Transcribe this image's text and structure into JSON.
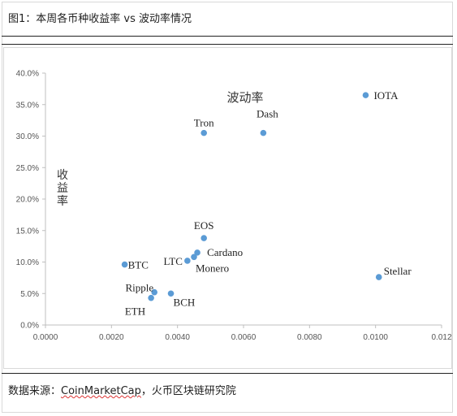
{
  "header": {
    "title": "图1：本周各币种收益率 vs 波动率情况"
  },
  "footer": {
    "source_prefix": "数据来源：",
    "source_link": "CoinMarketCap",
    "source_suffix": "，火币区块链研究院"
  },
  "chart_data": {
    "type": "scatter",
    "title": "波动率",
    "xlabel": "",
    "ylabel": "收益率",
    "xlim": [
      0,
      0.012
    ],
    "ylim": [
      0,
      0.4
    ],
    "x_ticks": [
      "0.0000",
      "0.0020",
      "0.0040",
      "0.0060",
      "0.0080",
      "0.0100",
      "0.012"
    ],
    "y_ticks": [
      "0.0%",
      "5.0%",
      "10.0%",
      "15.0%",
      "20.0%",
      "25.0%",
      "30.0%",
      "35.0%",
      "40.0%"
    ],
    "grid": false,
    "marker_color": "#5b9bd5",
    "points": [
      {
        "name": "IOTA",
        "x": 0.0097,
        "y": 0.365
      },
      {
        "name": "Dash",
        "x": 0.0066,
        "y": 0.305
      },
      {
        "name": "Tron",
        "x": 0.0048,
        "y": 0.305
      },
      {
        "name": "EOS",
        "x": 0.0048,
        "y": 0.138
      },
      {
        "name": "Cardano",
        "x": 0.0046,
        "y": 0.115
      },
      {
        "name": "Monero",
        "x": 0.0045,
        "y": 0.108
      },
      {
        "name": "LTC",
        "x": 0.0043,
        "y": 0.102
      },
      {
        "name": "BTC",
        "x": 0.0024,
        "y": 0.096
      },
      {
        "name": "Stellar",
        "x": 0.0101,
        "y": 0.076
      },
      {
        "name": "Ripple",
        "x": 0.0033,
        "y": 0.052
      },
      {
        "name": "BCH",
        "x": 0.0038,
        "y": 0.05
      },
      {
        "name": "ETH",
        "x": 0.0032,
        "y": 0.043
      }
    ]
  }
}
